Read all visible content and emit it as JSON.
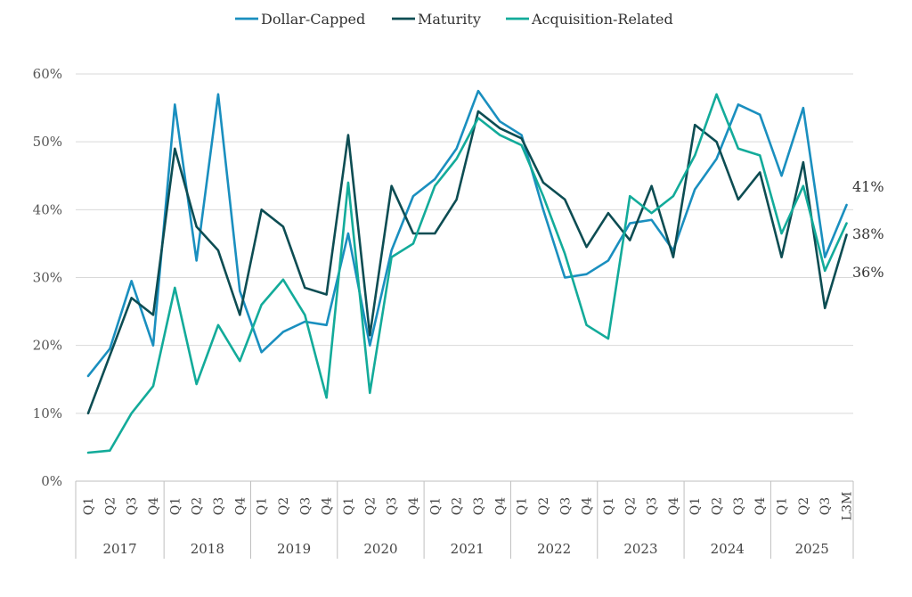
{
  "chart_data": {
    "type": "line",
    "title": "",
    "xlabel": "",
    "ylabel": "",
    "ylim": [
      0,
      60
    ],
    "yticks": [
      0,
      10,
      20,
      30,
      40,
      50,
      60
    ],
    "ytick_labels": [
      "0%",
      "10%",
      "20%",
      "30%",
      "40%",
      "50%",
      "60%"
    ],
    "grid": true,
    "legend_position": "top-center",
    "categories": [
      "Q1",
      "Q2",
      "Q3",
      "Q4",
      "Q1",
      "Q2",
      "Q3",
      "Q4",
      "Q1",
      "Q2",
      "Q3",
      "Q4",
      "Q1",
      "Q2",
      "Q3",
      "Q4",
      "Q1",
      "Q2",
      "Q3",
      "Q4",
      "Q1",
      "Q2",
      "Q3",
      "Q4",
      "Q1",
      "Q2",
      "Q3",
      "Q4",
      "Q1",
      "Q2",
      "Q3",
      "Q4",
      "Q1",
      "Q2",
      "Q3",
      "L3M"
    ],
    "year_groups": [
      {
        "label": "2017",
        "count": 4
      },
      {
        "label": "2018",
        "count": 4
      },
      {
        "label": "2019",
        "count": 4
      },
      {
        "label": "2020",
        "count": 4
      },
      {
        "label": "2021",
        "count": 4
      },
      {
        "label": "2022",
        "count": 4
      },
      {
        "label": "2023",
        "count": 4
      },
      {
        "label": "2024",
        "count": 4
      },
      {
        "label": "2025",
        "count": 4
      }
    ],
    "series": [
      {
        "name": "Dollar-Capped",
        "color": "#1a8fbf",
        "values": [
          15.5,
          19.5,
          29.5,
          20.0,
          55.5,
          32.5,
          57.0,
          28.0,
          19.0,
          22.0,
          23.5,
          23.0,
          36.5,
          20.0,
          34.0,
          42.0,
          44.5,
          49.0,
          57.5,
          53.0,
          51.0,
          40.0,
          30.0,
          30.5,
          32.5,
          38.0,
          38.5,
          34.0,
          43.0,
          47.5,
          55.5,
          54.0,
          45.0,
          55.0,
          33.0,
          40.7
        ]
      },
      {
        "name": "Maturity",
        "color": "#0d4d53",
        "values": [
          10.0,
          18.5,
          27.0,
          24.5,
          49.0,
          37.5,
          34.0,
          24.5,
          40.0,
          37.5,
          28.5,
          27.5,
          51.0,
          21.5,
          43.5,
          36.5,
          36.5,
          41.5,
          54.5,
          52.0,
          50.5,
          44.0,
          41.5,
          34.5,
          39.5,
          35.5,
          43.5,
          33.0,
          52.5,
          50.0,
          41.5,
          45.5,
          33.0,
          47.0,
          25.5,
          36.3
        ]
      },
      {
        "name": "Acquisition-Related",
        "color": "#13ab9a",
        "values": [
          4.2,
          4.5,
          10.0,
          14.0,
          28.5,
          14.3,
          23.0,
          17.7,
          26.0,
          29.7,
          24.5,
          12.3,
          44.0,
          13.0,
          33.0,
          35.0,
          43.5,
          47.5,
          53.5,
          51.0,
          49.5,
          42.0,
          33.5,
          23.0,
          21.0,
          42.0,
          39.5,
          42.0,
          48.0,
          57.0,
          49.0,
          48.0,
          36.5,
          43.5,
          31.0,
          38.0
        ]
      }
    ],
    "end_labels": [
      {
        "series": "Dollar-Capped",
        "text": "41%"
      },
      {
        "series": "Acquisition-Related",
        "text": "38%"
      },
      {
        "series": "Maturity",
        "text": "36%"
      }
    ]
  }
}
